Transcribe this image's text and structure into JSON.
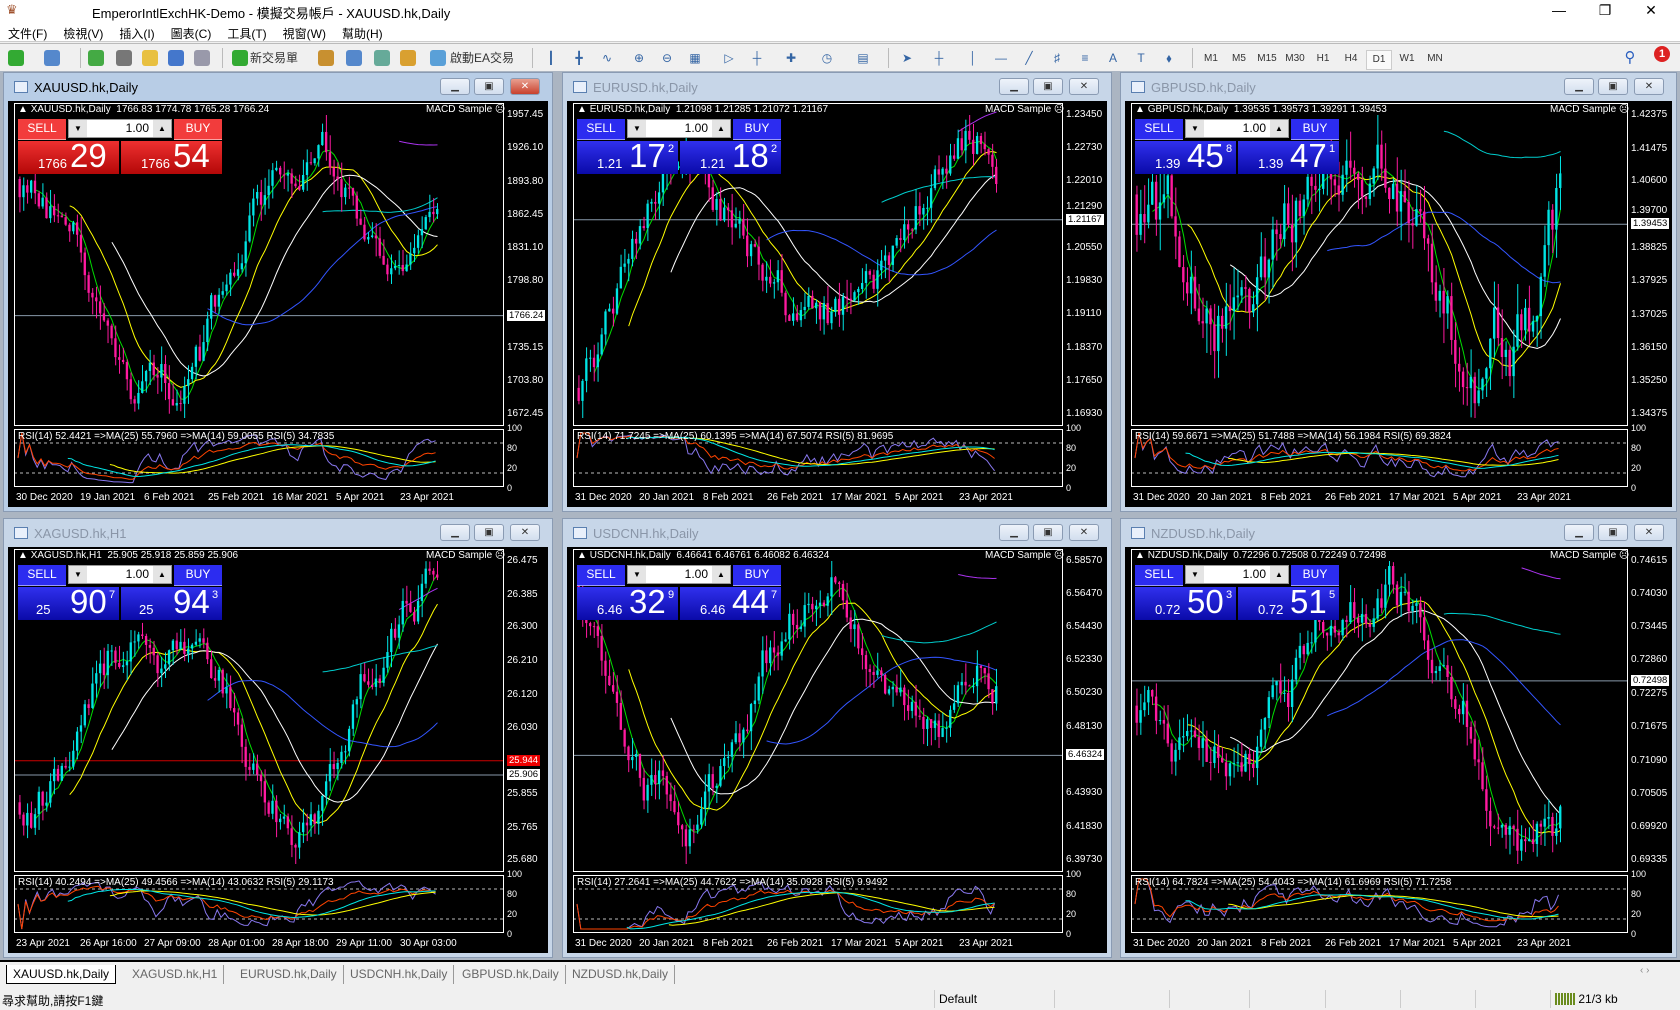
{
  "title": "EmperorIntlExchHK-Demo - 模擬交易帳戶 - XAUUSD.hk,Daily",
  "menu": [
    "文件(F)",
    "檢視(V)",
    "插入(I)",
    "圖表(C)",
    "工具(T)",
    "視窗(W)",
    "幫助(H)"
  ],
  "toolbar": {
    "new_order": "新交易單",
    "auto_trading": "啟動EA交易",
    "timeframes": [
      "M1",
      "M5",
      "M15",
      "M30",
      "H1",
      "H4",
      "D1",
      "W1",
      "MN"
    ],
    "active_timeframe": "D1",
    "notification_count": "1"
  },
  "colors": {
    "bull": "#00e5e5",
    "bear": "#ff1aa0",
    "red_panel": "#d01818",
    "blue_panel": "#1010c8"
  },
  "charts": [
    {
      "window_title": "XAUUSD.hk,Daily",
      "symbol": "XAUUSD.hk,Daily",
      "ohlc": "1766.83 1774.78 1765.28 1766.24",
      "ea": "MACD Sample",
      "lot": "1.00",
      "sell_label": "SELL",
      "buy_label": "BUY",
      "theme": "red",
      "active": true,
      "sell": {
        "small": "1766",
        "main": "29",
        "sup": ""
      },
      "buy": {
        "small": "1766",
        "main": "54",
        "sup": ""
      },
      "price_ticks": [
        "1957.45",
        "1926.10",
        "1893.80",
        "1862.45",
        "1831.10",
        "1798.80",
        "1766.24",
        "1735.15",
        "1703.80",
        "1672.45"
      ],
      "current_price": "1766.24",
      "rsi_text": "RSI(14) 52.4421  =>MA(25) 55.7960  =>MA(14) 59.0055  RSI(5) 34.7835",
      "dates": [
        "30 Dec 2020",
        "19 Jan 2021",
        "6 Feb 2021",
        "25 Feb 2021",
        "16 Mar 2021",
        "5 Apr 2021",
        "23 Apr 2021"
      ],
      "seed": 3
    },
    {
      "window_title": "EURUSD.hk,Daily",
      "symbol": "EURUSD.hk,Daily",
      "ohlc": "1.21098 1.21285 1.21072 1.21167",
      "ea": "MACD Sample",
      "lot": "1.00",
      "sell_label": "SELL",
      "buy_label": "BUY",
      "theme": "blue",
      "active": false,
      "sell": {
        "small": "1.21",
        "main": "17",
        "sup": "2"
      },
      "buy": {
        "small": "1.21",
        "main": "18",
        "sup": "2"
      },
      "price_ticks": [
        "1.23450",
        "1.22730",
        "1.22010",
        "1.21290",
        "1.20550",
        "1.19830",
        "1.19110",
        "1.18370",
        "1.17650",
        "1.16930"
      ],
      "current_price": "1.21167",
      "rsi_text": "RSI(14) 71.7245  =>MA(25) 60.1395  =>MA(14) 67.5074  RSI(5) 81.9695",
      "dates": [
        "31 Dec 2020",
        "20 Jan 2021",
        "8 Feb 2021",
        "26 Feb 2021",
        "17 Mar 2021",
        "5 Apr 2021",
        "23 Apr 2021"
      ],
      "seed": 7
    },
    {
      "window_title": "GBPUSD.hk,Daily",
      "symbol": "GBPUSD.hk,Daily",
      "ohlc": "1.39535 1.39573 1.39291 1.39453",
      "ea": "MACD Sample",
      "lot": "1.00",
      "sell_label": "SELL",
      "buy_label": "BUY",
      "theme": "blue",
      "active": false,
      "sell": {
        "small": "1.39",
        "main": "45",
        "sup": "8"
      },
      "buy": {
        "small": "1.39",
        "main": "47",
        "sup": "1"
      },
      "price_ticks": [
        "1.42375",
        "1.41475",
        "1.40600",
        "1.39700",
        "1.38825",
        "1.37925",
        "1.37025",
        "1.36150",
        "1.35250",
        "1.34375"
      ],
      "current_price": "1.39453",
      "rsi_text": "RSI(14) 59.6671  =>MA(25) 51.7488  =>MA(14) 56.1984  RSI(5) 69.3824",
      "dates": [
        "31 Dec 2020",
        "20 Jan 2021",
        "8 Feb 2021",
        "26 Feb 2021",
        "17 Mar 2021",
        "5 Apr 2021",
        "23 Apr 2021"
      ],
      "seed": 11
    },
    {
      "window_title": "XAGUSD.hk,H1",
      "symbol": "XAGUSD.hk,H1",
      "ohlc": "25.905 25.918 25.859 25.906",
      "ea": "MACD Sample",
      "lot": "1.00",
      "sell_label": "SELL",
      "buy_label": "BUY",
      "theme": "blue",
      "active": false,
      "sell": {
        "small": "25",
        "main": "90",
        "sup": "7"
      },
      "buy": {
        "small": "25",
        "main": "94",
        "sup": "3"
      },
      "price_ticks": [
        "26.475",
        "26.385",
        "26.300",
        "26.210",
        "26.120",
        "26.030",
        "25.944",
        "25.855",
        "25.765",
        "25.680"
      ],
      "current_price": "25.906",
      "ask_price": "25.944",
      "rsi_text": "RSI(14) 40.2494  =>MA(25) 49.4566  =>MA(14) 43.0632  RSI(5) 29.1173",
      "dates": [
        "23 Apr 2021",
        "26 Apr 16:00",
        "27 Apr 09:00",
        "28 Apr 01:00",
        "28 Apr 18:00",
        "29 Apr 11:00",
        "30 Apr 03:00"
      ],
      "seed": 19
    },
    {
      "window_title": "USDCNH.hk,Daily",
      "symbol": "USDCNH.hk,Daily",
      "ohlc": "6.46641 6.46761 6.46082 6.46324",
      "ea": "MACD Sample",
      "lot": "1.00",
      "sell_label": "SELL",
      "buy_label": "BUY",
      "theme": "blue",
      "active": false,
      "sell": {
        "small": "6.46",
        "main": "32",
        "sup": "9"
      },
      "buy": {
        "small": "6.46",
        "main": "44",
        "sup": "7"
      },
      "price_ticks": [
        "6.58570",
        "6.56470",
        "6.54430",
        "6.52330",
        "6.50230",
        "6.48130",
        "6.46324",
        "6.43930",
        "6.41830",
        "6.39730"
      ],
      "current_price": "6.46324",
      "rsi_text": "RSI(14) 27.2641  =>MA(25) 44.7622  =>MA(14) 35.0928  RSI(5) 9.9492",
      "dates": [
        "31 Dec 2020",
        "20 Jan 2021",
        "8 Feb 2021",
        "26 Feb 2021",
        "17 Mar 2021",
        "5 Apr 2021",
        "23 Apr 2021"
      ],
      "seed": 23
    },
    {
      "window_title": "NZDUSD.hk,Daily",
      "symbol": "NZDUSD.hk,Daily",
      "ohlc": "0.72296 0.72508 0.72249 0.72498",
      "ea": "MACD Sample",
      "lot": "1.00",
      "sell_label": "SELL",
      "buy_label": "BUY",
      "theme": "blue",
      "active": false,
      "sell": {
        "small": "0.72",
        "main": "50",
        "sup": "3"
      },
      "buy": {
        "small": "0.72",
        "main": "51",
        "sup": "5"
      },
      "price_ticks": [
        "0.74615",
        "0.74030",
        "0.73445",
        "0.72860",
        "0.72498",
        "0.72275",
        "0.71675",
        "0.71090",
        "0.70505",
        "0.69920",
        "0.69335"
      ],
      "current_price": "0.72498",
      "rsi_text": "RSI(14) 64.7824  =>MA(25) 54.4043  =>MA(14) 61.6969  RSI(5) 71.7258",
      "dates": [
        "31 Dec 2020",
        "20 Jan 2021",
        "8 Feb 2021",
        "26 Feb 2021",
        "17 Mar 2021",
        "5 Apr 2021",
        "23 Apr 2021"
      ],
      "seed": 29
    }
  ],
  "rsi_levels": [
    "100",
    "80",
    "20",
    "0"
  ],
  "tabs": [
    "XAUUSD.hk,Daily",
    "XAGUSD.hk,H1",
    "EURUSD.hk,Daily",
    "USDCNH.hk,Daily",
    "GBPUSD.hk,Daily",
    "NZDUSD.hk,Daily"
  ],
  "active_tab": 0,
  "status": {
    "help": "尋求幫助,請按F1鍵",
    "profile": "Default",
    "connection": "21/3 kb"
  }
}
